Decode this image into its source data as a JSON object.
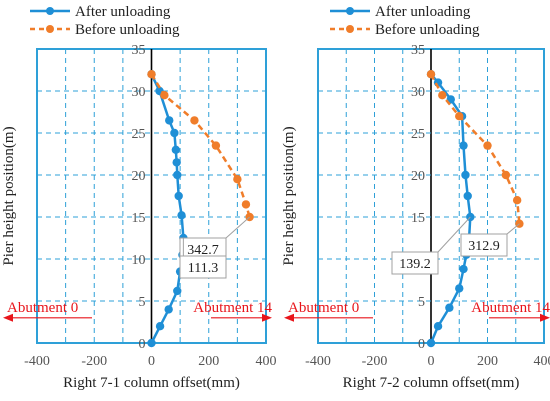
{
  "legend": {
    "after_label": "After unloading",
    "before_label": "Before unloading",
    "after_color": "#1f8fd6",
    "before_color": "#f07d2a"
  },
  "colors": {
    "frame": "#2ea0d8",
    "grid": "#2ea0d8",
    "arrow": "#e8151b",
    "callout_border": "#a0a0a0"
  },
  "chart_data": [
    {
      "type": "line",
      "xlabel": "Right 7-1 column offset(mm)",
      "ylabel": "Pier height position(m)",
      "xlim": [
        -400,
        400
      ],
      "ylim": [
        0,
        35
      ],
      "xticks": [
        "-400",
        "-200",
        "0",
        "200",
        "400"
      ],
      "yticks": [
        "0",
        "5",
        "10",
        "15",
        "20",
        "25",
        "30",
        "35"
      ],
      "grid": true,
      "series": [
        {
          "name": "After unloading",
          "style": "solid",
          "points": [
            [
              0,
              0
            ],
            [
              30,
              2
            ],
            [
              60,
              4
            ],
            [
              90,
              6.2
            ],
            [
              100,
              8.5
            ],
            [
              108,
              10.5
            ],
            [
              111.3,
              12.5
            ],
            [
              105,
              15.2
            ],
            [
              95,
              17.5
            ],
            [
              90,
              20
            ],
            [
              88,
              21.5
            ],
            [
              85,
              23
            ],
            [
              80,
              25
            ],
            [
              62,
              26.5
            ],
            [
              28,
              30
            ],
            [
              0,
              32
            ]
          ]
        },
        {
          "name": "Before unloading",
          "style": "dashed",
          "points": [
            [
              0,
              32
            ],
            [
              45,
              29.5
            ],
            [
              150,
              26.5
            ],
            [
              225,
              23.5
            ],
            [
              300,
              19.5
            ],
            [
              330,
              16.5
            ],
            [
              342.7,
              15
            ]
          ]
        }
      ],
      "annotations": [
        {
          "text": "342.7",
          "x": 342.7,
          "y": 15
        },
        {
          "text": "111.3",
          "x": 111.3,
          "y": 12.5
        }
      ],
      "abutments": [
        {
          "text": "Abutment 0",
          "side": "left"
        },
        {
          "text": "Abutment 14",
          "side": "right"
        }
      ]
    },
    {
      "type": "line",
      "xlabel": "Right 7-2 column offset(mm)",
      "ylabel": "Pier height position(m)",
      "xlim": [
        -400,
        400
      ],
      "ylim": [
        0,
        35
      ],
      "xticks": [
        "-400",
        "-200",
        "0",
        "200",
        "400"
      ],
      "yticks": [
        "0",
        "5",
        "10",
        "15",
        "20",
        "25",
        "30",
        "35"
      ],
      "grid": true,
      "series": [
        {
          "name": "After unloading",
          "style": "solid",
          "points": [
            [
              0,
              0
            ],
            [
              25,
              2
            ],
            [
              65,
              4.2
            ],
            [
              100,
              6.5
            ],
            [
              115,
              8.8
            ],
            [
              125,
              10.5
            ],
            [
              135,
              12.5
            ],
            [
              139.2,
              15
            ],
            [
              130,
              17.5
            ],
            [
              122,
              20
            ],
            [
              115,
              23.5
            ],
            [
              110,
              27
            ],
            [
              70,
              29
            ],
            [
              25,
              31
            ],
            [
              0,
              32
            ]
          ]
        },
        {
          "name": "Before unloading",
          "style": "dashed",
          "points": [
            [
              0,
              32
            ],
            [
              40,
              29.5
            ],
            [
              100,
              27
            ],
            [
              200,
              23.5
            ],
            [
              265,
              20
            ],
            [
              305,
              17
            ],
            [
              312.9,
              14.2
            ]
          ]
        }
      ],
      "annotations": [
        {
          "text": "312.9",
          "x": 312.9,
          "y": 14.2
        },
        {
          "text": "139.2",
          "x": 139.2,
          "y": 15
        }
      ],
      "abutments": [
        {
          "text": "Abutment 0",
          "side": "left"
        },
        {
          "text": "Abutment 14",
          "side": "right"
        }
      ]
    }
  ]
}
